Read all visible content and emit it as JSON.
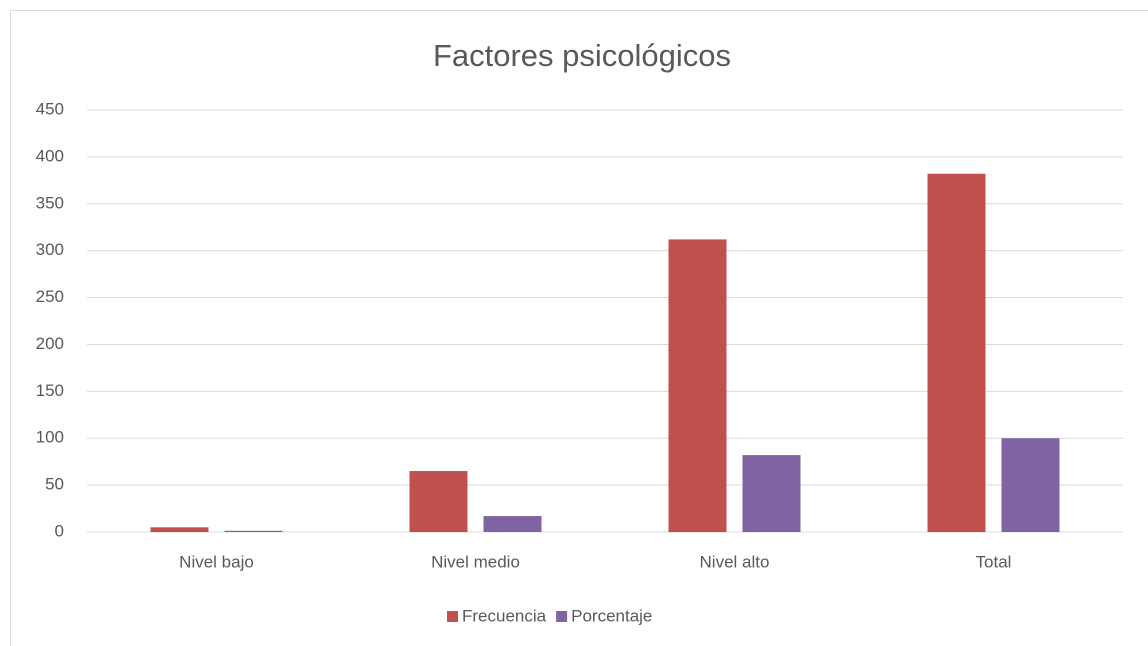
{
  "chart_data": {
    "type": "bar",
    "title": "Factores psicológicos",
    "categories": [
      "Nivel bajo",
      "Nivel medio",
      "Nivel alto",
      "Total"
    ],
    "series": [
      {
        "name": "Frecuencia",
        "color": "#c0504d",
        "values": [
          5,
          65,
          312,
          382
        ]
      },
      {
        "name": "Porcentaje",
        "color": "#8064a2",
        "values": [
          1.3,
          17,
          82,
          100
        ]
      }
    ],
    "ylim": [
      0,
      450
    ],
    "yticks": [
      0,
      50,
      100,
      150,
      200,
      250,
      300,
      350,
      400,
      450
    ],
    "grid": true,
    "legend": "bottom"
  }
}
